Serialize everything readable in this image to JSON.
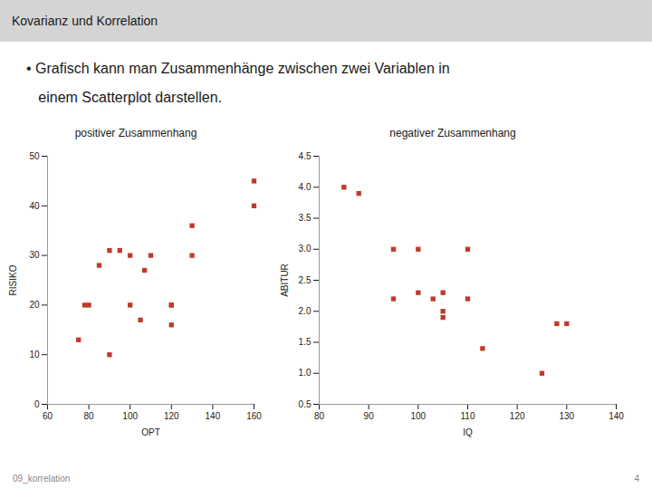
{
  "title": "Kovarianz und Korrelation",
  "annotations": [
    "• Grafisch kann man Zusammenhänge zwischen zwei Variablen in",
    "   einem Scatterplot darstellen.",
    "09_korrelation",
    "4"
  ],
  "chart_data": [
    {
      "type": "scatter",
      "title": "positiver Zusammenhang",
      "x_label": "OPT",
      "y_label": "RISIKO",
      "x": [
        75,
        78,
        80,
        85,
        90,
        90,
        95,
        100,
        100,
        105,
        107,
        110,
        120,
        120,
        120,
        130,
        130,
        160,
        160
      ],
      "values": [
        13,
        20,
        20,
        28,
        10,
        31,
        31,
        20,
        30,
        17,
        27,
        30,
        20,
        16,
        20,
        36,
        30,
        45,
        40
      ],
      "color": "#c0392b",
      "marker": "square",
      "xlim": [
        60,
        160
      ],
      "ylim": [
        0,
        50
      ],
      "xticks": [
        60,
        80,
        100,
        120,
        140,
        160
      ],
      "yticks": [
        0,
        10,
        20,
        30,
        40,
        50
      ],
      "grid": false
    },
    {
      "type": "scatter",
      "title": "negativer Zusammenhang",
      "x_label": "IQ",
      "y_label": "ABITUR",
      "x": [
        85,
        88,
        95,
        95,
        100,
        100,
        103,
        105,
        105,
        105,
        110,
        110,
        113,
        125,
        128,
        130
      ],
      "values": [
        4.0,
        3.9,
        2.2,
        3.0,
        2.3,
        3.0,
        2.2,
        2.0,
        1.9,
        2.3,
        3.0,
        2.2,
        1.4,
        1.0,
        1.8,
        1.8
      ],
      "color": "#c0392b",
      "marker": "square",
      "xlim": [
        80,
        140
      ],
      "ylim": [
        0.5,
        4.5
      ],
      "xticks": [
        80,
        90,
        100,
        110,
        120,
        130,
        140
      ],
      "yticks": [
        0.5,
        {
          "value": 1,
          "label": "1.0"
        },
        1.5,
        {
          "value": 2,
          "label": "2.0"
        },
        2.5,
        {
          "value": 3,
          "label": "3.0"
        },
        3.5,
        {
          "value": 4,
          "label": "4.0"
        },
        4.5
      ],
      "grid": false
    }
  ]
}
